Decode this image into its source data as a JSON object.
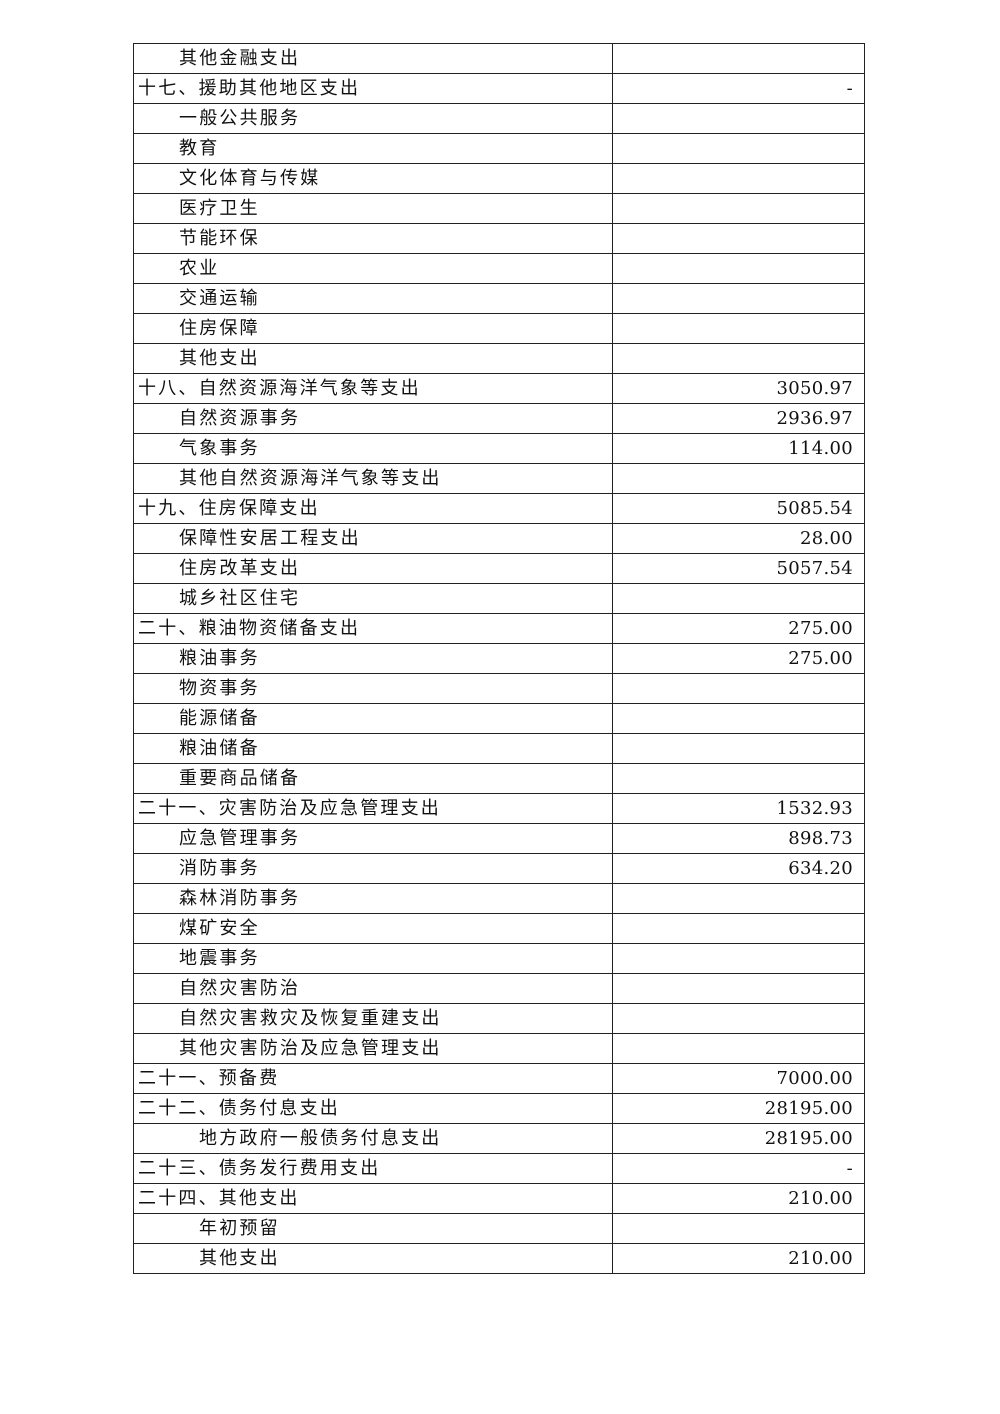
{
  "table": {
    "rows": [
      {
        "name": "其他金融支出",
        "value": "",
        "level": 1
      },
      {
        "name": "十七、援助其他地区支出",
        "value": "-",
        "level": 0
      },
      {
        "name": "一般公共服务",
        "value": "",
        "level": 1
      },
      {
        "name": "教育",
        "value": "",
        "level": 1
      },
      {
        "name": "文化体育与传媒",
        "value": "",
        "level": 1
      },
      {
        "name": "医疗卫生",
        "value": "",
        "level": 1
      },
      {
        "name": "节能环保",
        "value": "",
        "level": 1
      },
      {
        "name": "农业",
        "value": "",
        "level": 1
      },
      {
        "name": "交通运输",
        "value": "",
        "level": 1
      },
      {
        "name": "住房保障",
        "value": "",
        "level": 1
      },
      {
        "name": "其他支出",
        "value": "",
        "level": 1
      },
      {
        "name": "十八、自然资源海洋气象等支出",
        "value": "3050.97",
        "level": 0
      },
      {
        "name": "自然资源事务",
        "value": "2936.97",
        "level": 1
      },
      {
        "name": "气象事务",
        "value": "114.00",
        "level": 1
      },
      {
        "name": "其他自然资源海洋气象等支出",
        "value": "",
        "level": 1
      },
      {
        "name": "十九、住房保障支出",
        "value": "5085.54",
        "level": 0
      },
      {
        "name": "保障性安居工程支出",
        "value": "28.00",
        "level": 1
      },
      {
        "name": "住房改革支出",
        "value": "5057.54",
        "level": 1
      },
      {
        "name": "城乡社区住宅",
        "value": "",
        "level": 1
      },
      {
        "name": "二十、粮油物资储备支出",
        "value": "275.00",
        "level": 0
      },
      {
        "name": "粮油事务",
        "value": "275.00",
        "level": 1
      },
      {
        "name": "物资事务",
        "value": "",
        "level": 1
      },
      {
        "name": "能源储备",
        "value": "",
        "level": 1
      },
      {
        "name": "粮油储备",
        "value": "",
        "level": 1
      },
      {
        "name": "重要商品储备",
        "value": "",
        "level": 1
      },
      {
        "name": "二十一、灾害防治及应急管理支出",
        "value": "1532.93",
        "level": 0
      },
      {
        "name": "应急管理事务",
        "value": "898.73",
        "level": 1
      },
      {
        "name": "消防事务",
        "value": "634.20",
        "level": 1
      },
      {
        "name": "森林消防事务",
        "value": "",
        "level": 1
      },
      {
        "name": "煤矿安全",
        "value": "",
        "level": 1
      },
      {
        "name": "地震事务",
        "value": "",
        "level": 1
      },
      {
        "name": "自然灾害防治",
        "value": "",
        "level": 1
      },
      {
        "name": "自然灾害救灾及恢复重建支出",
        "value": "",
        "level": 1
      },
      {
        "name": "其他灾害防治及应急管理支出",
        "value": "",
        "level": 1
      },
      {
        "name": "二十一、预备费",
        "value": "7000.00",
        "level": 0
      },
      {
        "name": "二十二、债务付息支出",
        "value": "28195.00",
        "level": 0
      },
      {
        "name": "地方政府一般债务付息支出",
        "value": "28195.00",
        "level": 2
      },
      {
        "name": "二十三、债务发行费用支出",
        "value": "-",
        "level": 0
      },
      {
        "name": "二十四、其他支出",
        "value": "210.00",
        "level": 0
      },
      {
        "name": "年初预留",
        "value": "",
        "level": 2
      },
      {
        "name": "其他支出",
        "value": "210.00",
        "level": 2
      }
    ]
  }
}
